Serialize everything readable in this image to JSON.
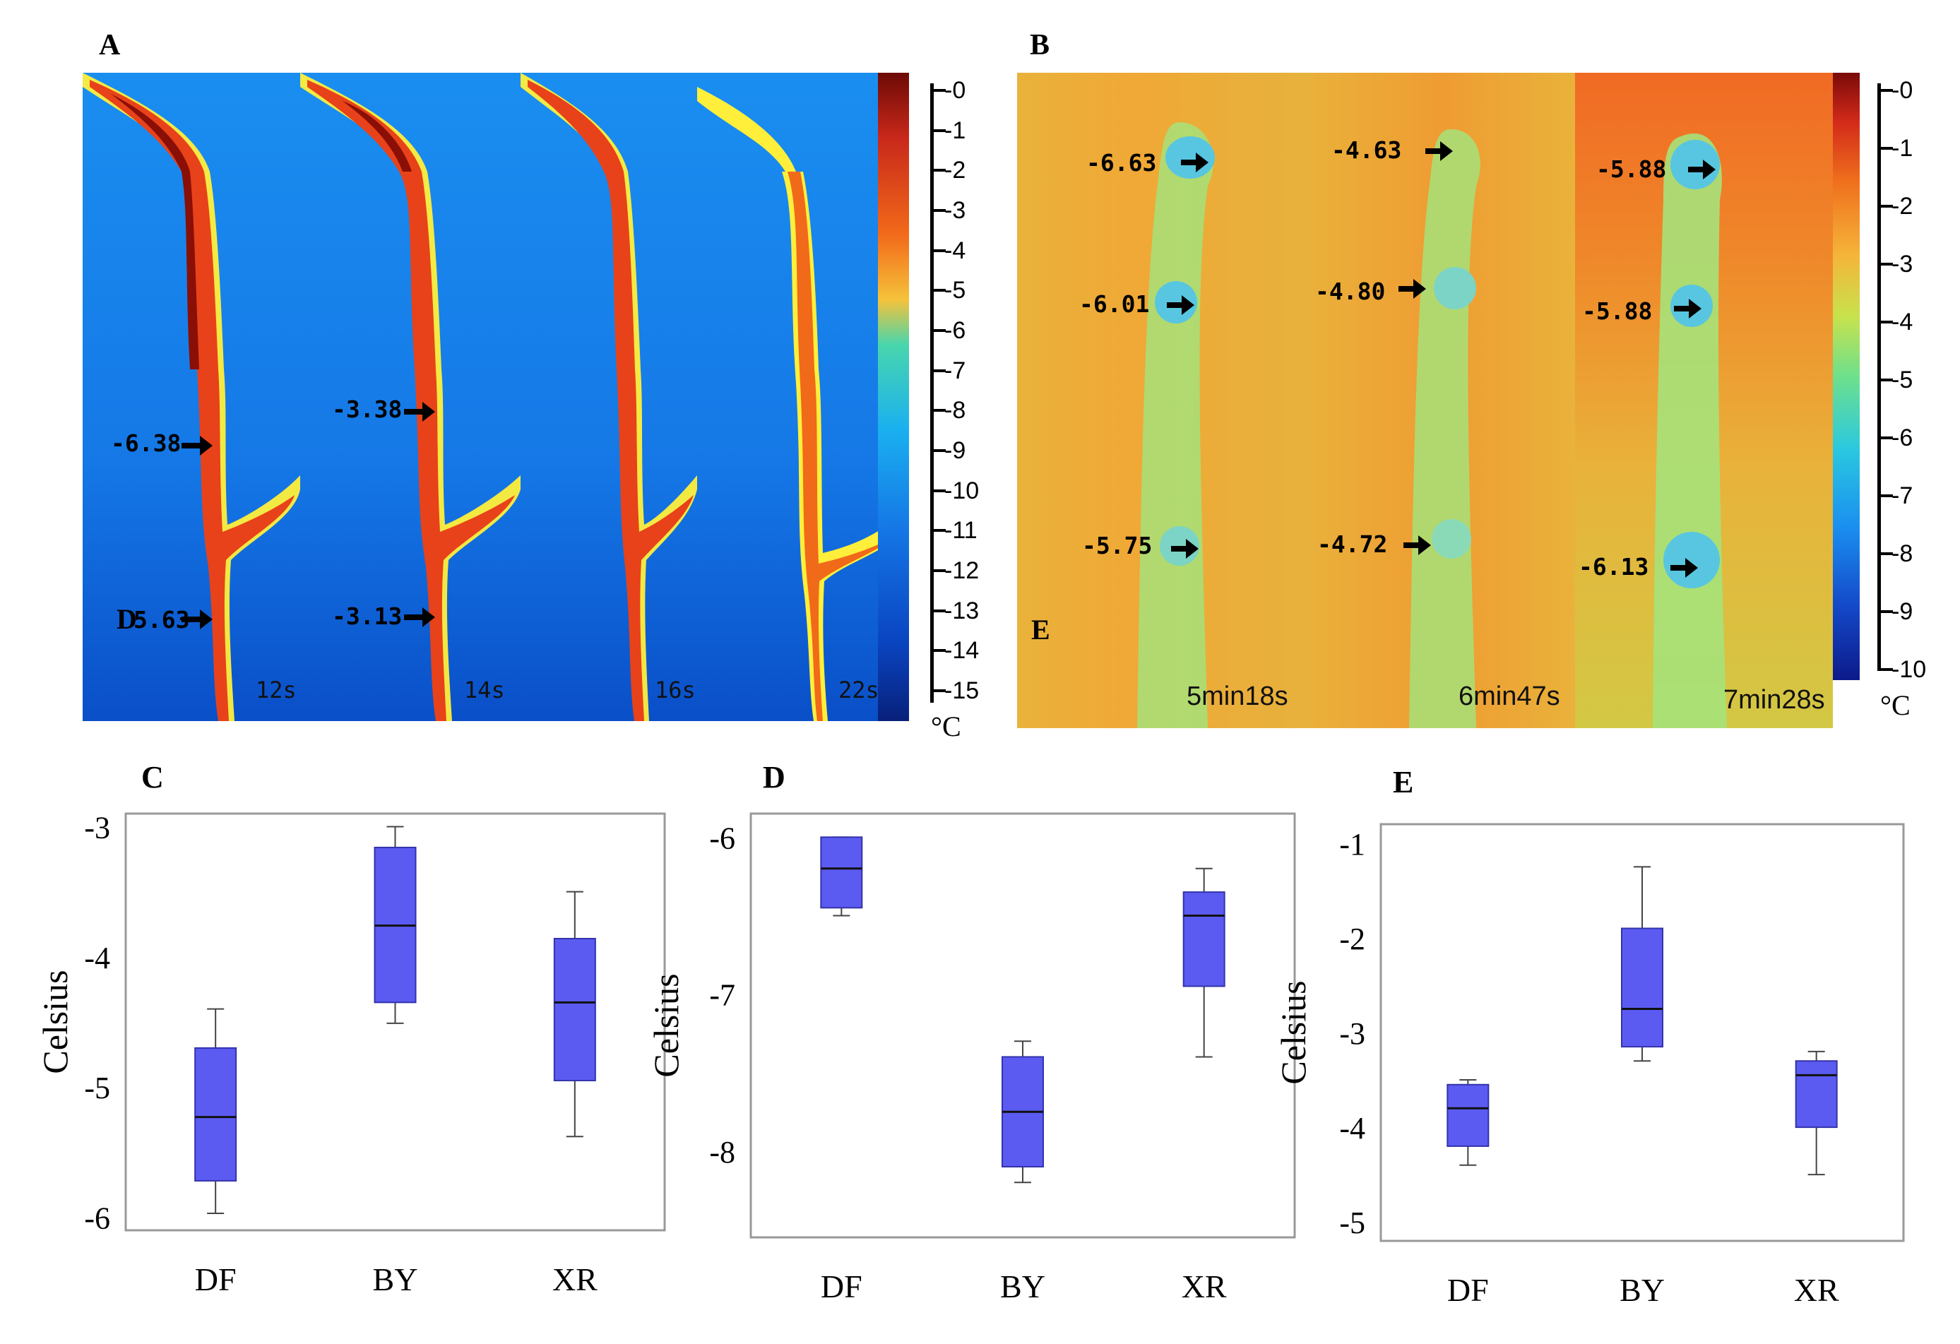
{
  "panels": {
    "A": {
      "letter": "A",
      "inset_letter": "D",
      "frames": [
        "12s",
        "14s",
        "16s",
        "22s"
      ],
      "annotations": [
        "-6.38",
        "5.63",
        "-3.38",
        "-3.13"
      ],
      "colorbar_ticks": [
        "-0",
        "-1",
        "-2",
        "-3",
        "-4",
        "-5",
        "-6",
        "-7",
        "-8",
        "-9",
        "-10",
        "-11",
        "-12",
        "-13",
        "-14",
        "-15"
      ],
      "unit": "°C"
    },
    "B": {
      "letter": "B",
      "inset_letter": "E",
      "frames": [
        "5min18s",
        "6min47s",
        "7min28s"
      ],
      "annotations": [
        "-6.63",
        "-6.01",
        "-5.75",
        "-4.63",
        "-4.80",
        "-4.72",
        "-5.88",
        "-5.88",
        "-6.13"
      ],
      "colorbar_ticks": [
        "-0",
        "-1",
        "-2",
        "-3",
        "-4",
        "-5",
        "-6",
        "-7",
        "-8",
        "-9",
        "-10"
      ],
      "unit": "°C"
    }
  },
  "colors": {
    "box_fill": "#5b5bf2",
    "box_stroke": "#3333aa",
    "frame": "#999999"
  },
  "chart_data": [
    {
      "letter": "C",
      "type": "box",
      "ylabel": "Celsius",
      "categories": [
        "DF",
        "BY",
        "XR"
      ],
      "yticks": [
        "-3",
        "-4",
        "-5",
        "-6"
      ],
      "ylim": [
        -6.1,
        -2.9
      ],
      "boxes": [
        {
          "min": -5.97,
          "q1": -5.72,
          "median": -5.23,
          "q3": -4.7,
          "max": -4.4
        },
        {
          "min": -4.51,
          "q1": -4.35,
          "median": -3.76,
          "q3": -3.16,
          "max": -3.0
        },
        {
          "min": -5.38,
          "q1": -4.95,
          "median": -4.35,
          "q3": -3.86,
          "max": -3.5
        }
      ]
    },
    {
      "letter": "D",
      "type": "box",
      "ylabel": "Celsius",
      "categories": [
        "DF",
        "BY",
        "XR"
      ],
      "yticks": [
        "-6",
        "-7",
        "-8"
      ],
      "ylim": [
        -8.55,
        -5.85
      ],
      "boxes": [
        {
          "min": -6.5,
          "q1": -6.45,
          "median": -6.2,
          "q3": -6.0,
          "max": -6.0
        },
        {
          "min": -8.2,
          "q1": -8.1,
          "median": -7.75,
          "q3": -7.4,
          "max": -7.3
        },
        {
          "min": -7.4,
          "q1": -6.95,
          "median": -6.5,
          "q3": -6.35,
          "max": -6.2
        }
      ]
    },
    {
      "letter": "E",
      "type": "box",
      "ylabel": "Celsius",
      "categories": [
        "DF",
        "BY",
        "XR"
      ],
      "yticks": [
        "-1",
        "-2",
        "-3",
        "-4",
        "-5"
      ],
      "ylim": [
        -5.2,
        -0.8
      ],
      "boxes": [
        {
          "min": -4.4,
          "q1": -4.2,
          "median": -3.8,
          "q3": -3.55,
          "max": -3.5
        },
        {
          "min": -3.3,
          "q1": -3.15,
          "median": -2.75,
          "q3": -1.9,
          "max": -1.25
        },
        {
          "min": -4.5,
          "q1": -4.0,
          "median": -3.45,
          "q3": -3.3,
          "max": -3.2
        }
      ]
    }
  ]
}
